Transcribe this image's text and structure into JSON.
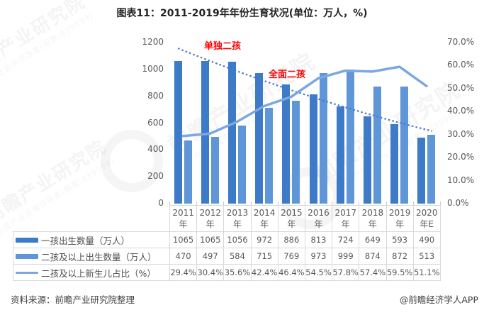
{
  "title": "图表11：2011-2019年年份生育状况(单位：万人，%)",
  "chart_data": {
    "type": "bar+line",
    "categories": [
      "2011年",
      "2012年",
      "2013年",
      "2014年",
      "2015年",
      "2016年",
      "2017年",
      "2018年",
      "2019年",
      "2020年E"
    ],
    "series": [
      {
        "name": "一孩出生数量（万人）",
        "type": "bar",
        "color": "#3d7ac8",
        "axis": "left",
        "values": [
          1065,
          1065,
          1056,
          972,
          886,
          813,
          724,
          649,
          593,
          490
        ]
      },
      {
        "name": "二孩及以上出生数量（万人）",
        "type": "bar",
        "color": "#5e96d8",
        "axis": "left",
        "values": [
          470,
          497,
          584,
          715,
          769,
          973,
          999,
          874,
          872,
          513
        ]
      },
      {
        "name": "二孩及以上新生儿占比（%）",
        "type": "line",
        "color": "#7ca7e0",
        "axis": "right",
        "values": [
          29.4,
          30.4,
          35.6,
          42.4,
          46.4,
          54.5,
          57.8,
          57.4,
          59.5,
          51.1
        ]
      }
    ],
    "left_axis": {
      "min": 0,
      "max": 1200,
      "step": 200,
      "ticks": [
        "0",
        "200",
        "400",
        "600",
        "800",
        "1000",
        "1200"
      ]
    },
    "right_axis": {
      "min": 0,
      "max": 70,
      "step": 10,
      "ticks": [
        "0.0%",
        "10.0%",
        "20.0%",
        "30.0%",
        "40.0%",
        "50.0%",
        "60.0%",
        "70.0%"
      ]
    },
    "trendline": {
      "style": "dotted",
      "color": "#4977c9",
      "from_pct": 67.5,
      "to_pct": 31.5
    },
    "annotations": [
      {
        "text": "单独二孩",
        "color": "#fe0000"
      },
      {
        "text": "全面二孩",
        "color": "#fe0000"
      }
    ],
    "grid": false,
    "legend_position": "table-left"
  },
  "table": {
    "header_years": [
      [
        "2011",
        "年"
      ],
      [
        "2012",
        "年"
      ],
      [
        "2013",
        "年"
      ],
      [
        "2014",
        "年"
      ],
      [
        "2015",
        "年"
      ],
      [
        "2016",
        "年"
      ],
      [
        "2017",
        "年"
      ],
      [
        "2018",
        "年"
      ],
      [
        "2019",
        "年"
      ],
      [
        "2020",
        "年E"
      ]
    ],
    "rows": [
      {
        "label": "一孩出生数量（万人）",
        "marker": "bar",
        "values": [
          "1065",
          "1065",
          "1056",
          "972",
          "886",
          "813",
          "724",
          "649",
          "593",
          "490"
        ]
      },
      {
        "label": "二孩及以上出生数量（万人）",
        "marker": "bar",
        "values": [
          "470",
          "497",
          "584",
          "715",
          "769",
          "973",
          "999",
          "874",
          "872",
          "513"
        ]
      },
      {
        "label": "二孩及以上新生儿占比（%）",
        "marker": "line",
        "values": [
          "29.4%",
          "30.4%",
          "35.6%",
          "42.4%",
          "46.4%",
          "54.5%",
          "57.8%",
          "57.4%",
          "59.5%",
          "51.1%"
        ]
      }
    ]
  },
  "footer": {
    "source": "资料来源：前瞻产业研究院整理",
    "credit": "@前瞻经济学人APP"
  },
  "watermark": {
    "main": "前瞻产业研究院",
    "sub": "中国产业咨询领导者(股票:839599)"
  }
}
